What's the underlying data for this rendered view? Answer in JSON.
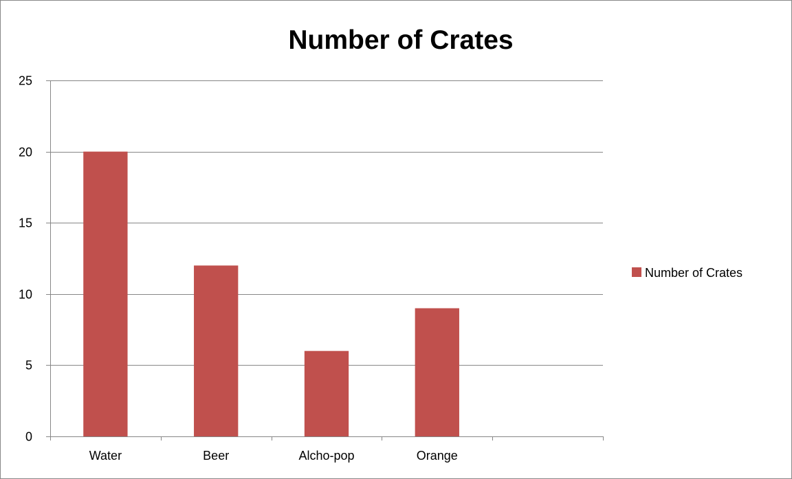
{
  "chart_data": {
    "type": "bar",
    "title": "Number of Crates",
    "categories": [
      "Water",
      "Beer",
      "Alcho-pop",
      "Orange",
      ""
    ],
    "series": [
      {
        "name": "Number of Crates",
        "values": [
          20,
          12,
          6,
          9,
          null
        ],
        "color": "#c0504d"
      }
    ],
    "xlabel": "",
    "ylabel": "",
    "ylim": [
      0,
      25
    ],
    "yticks": [
      "0",
      "5",
      "10",
      "15",
      "20",
      "25"
    ],
    "grid": true,
    "legend_position": "right"
  },
  "colors": {
    "bar": "#c0504d",
    "gridline": "#868686",
    "axis": "#868686",
    "border": "#878787"
  }
}
